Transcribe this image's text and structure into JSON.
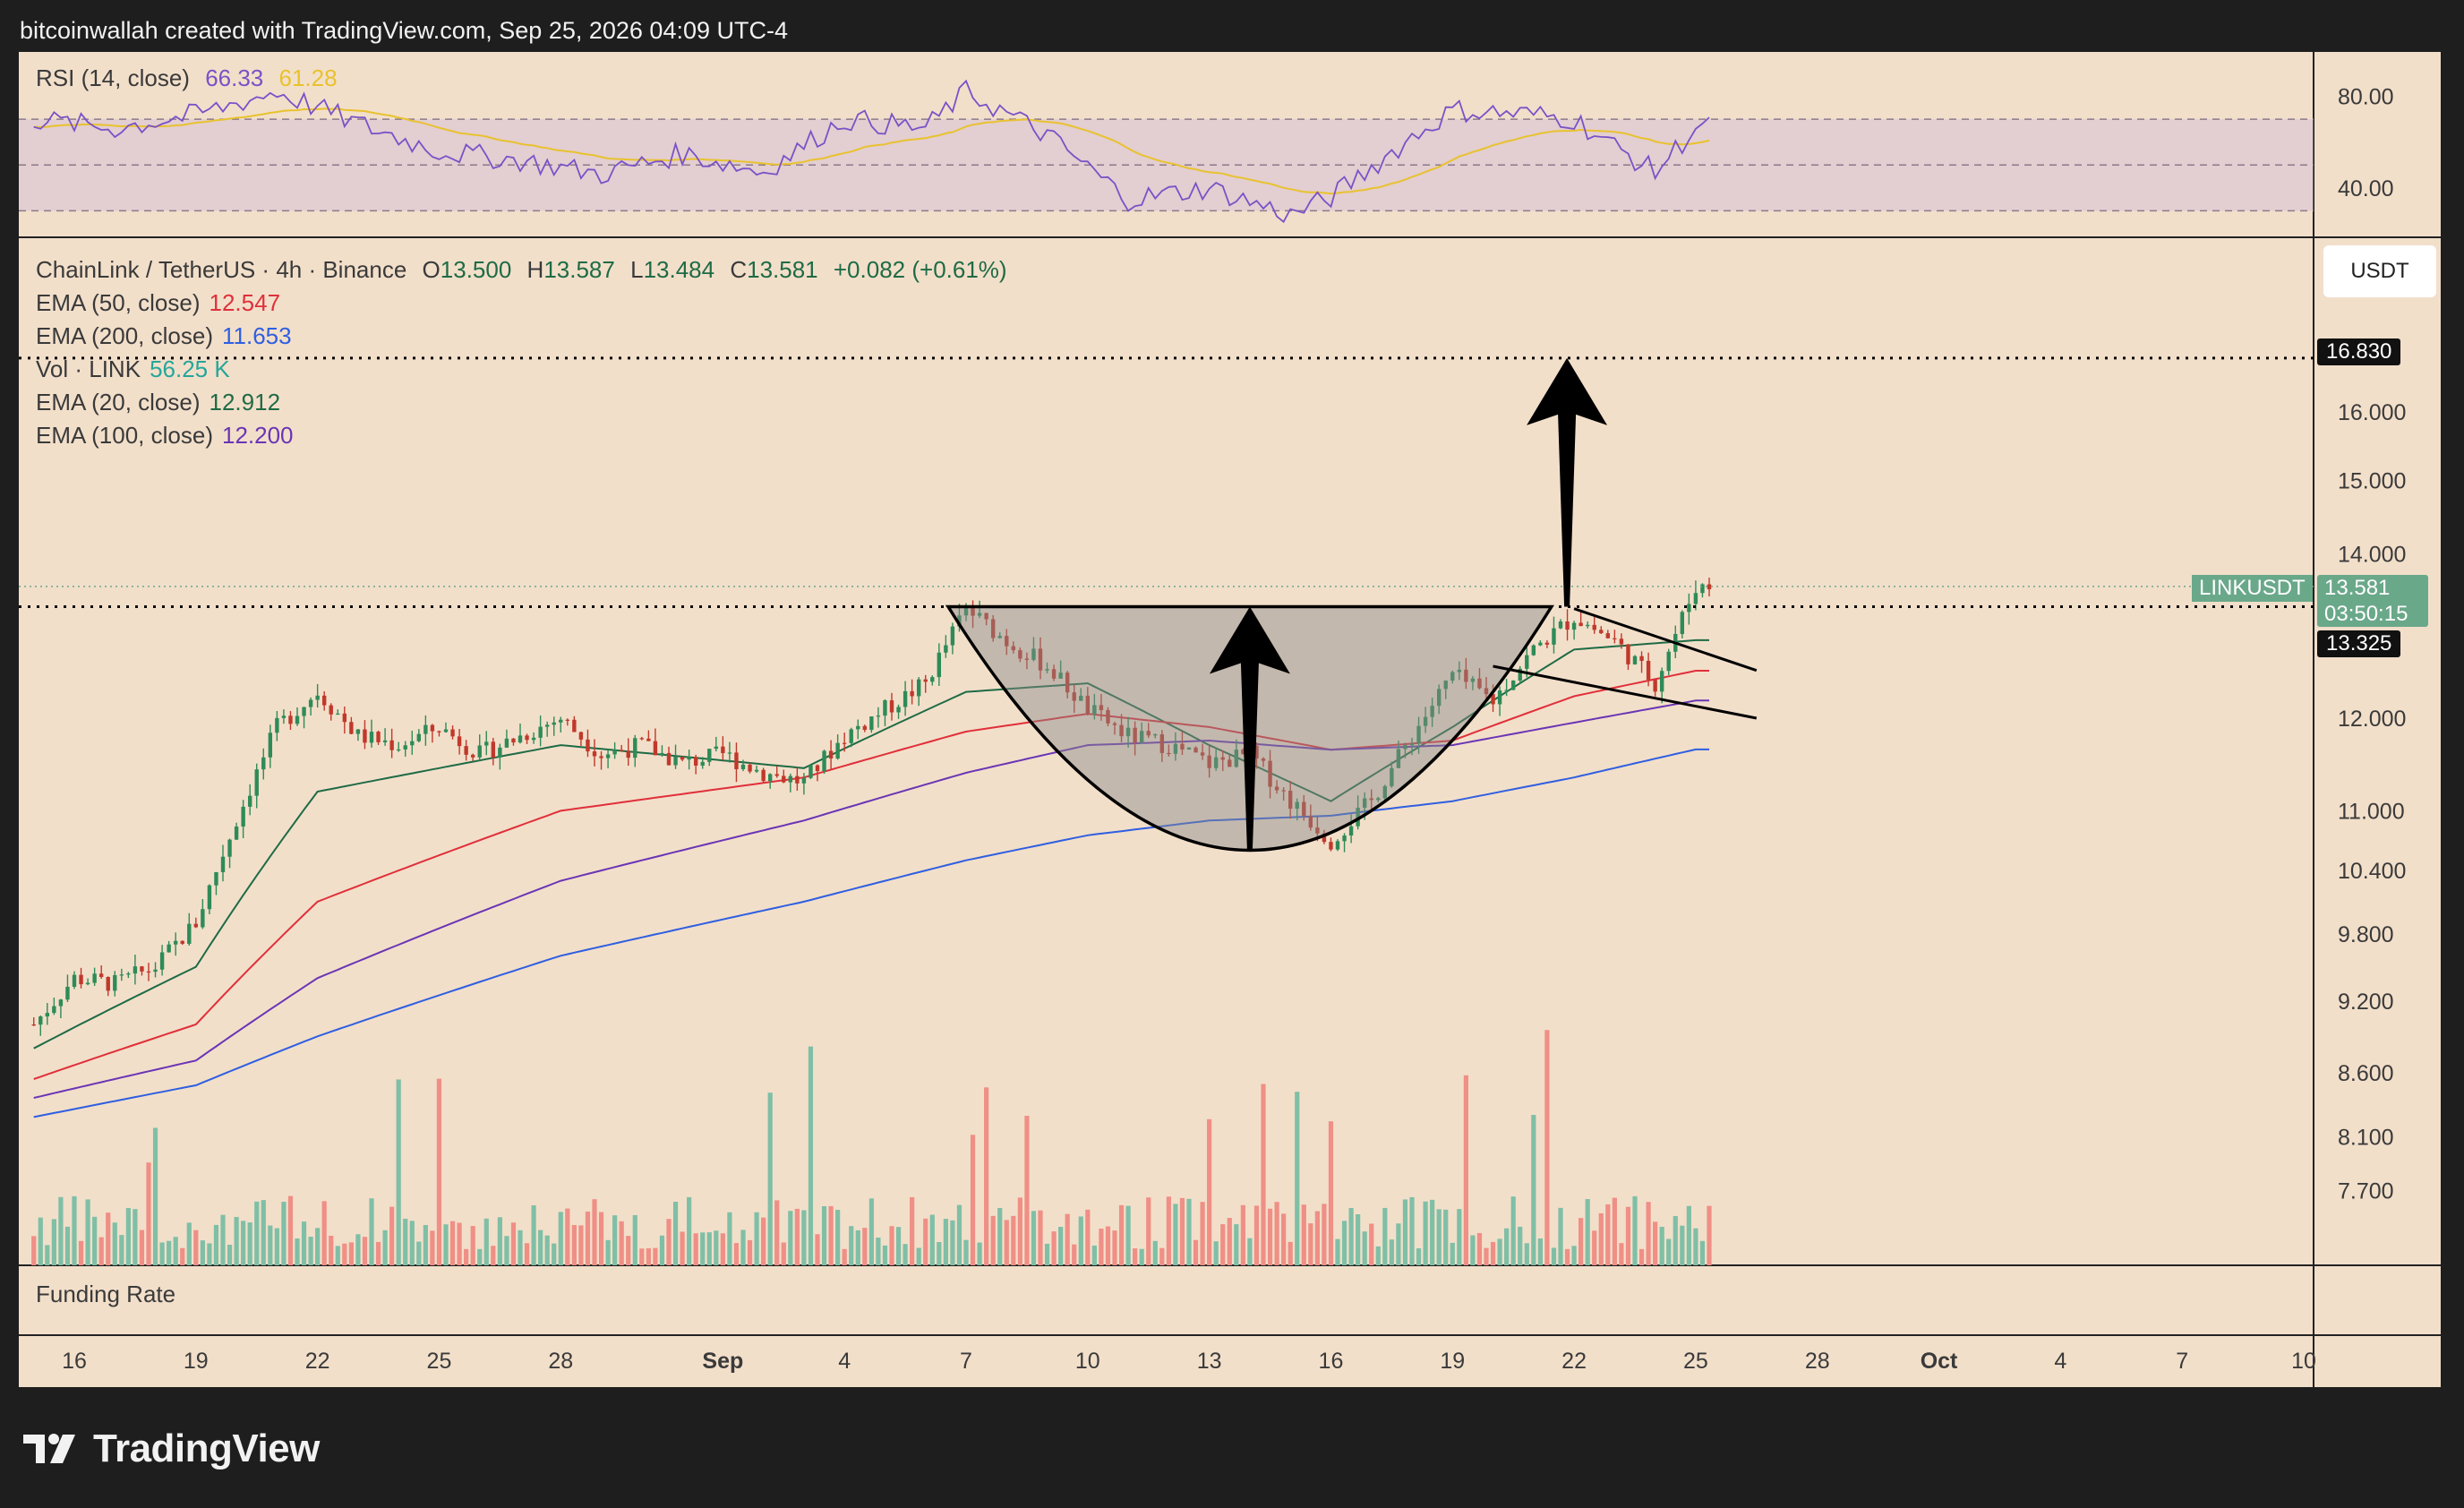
{
  "header": {
    "text": "bitcoinwallah created with TradingView.com, Sep 25, 2026 04:09 UTC-4"
  },
  "brand": {
    "name": "TradingView"
  },
  "colors": {
    "background": "#f2dfca",
    "up": "#2e8b57",
    "down": "#c0392b",
    "ema20": "#1e6b45",
    "ema50": "#e0303a",
    "ema100": "#6a35b5",
    "ema200": "#2f5fe0",
    "rsi_line": "#7a52c7",
    "rsi_ma": "#e8c22e",
    "vol_up": "#7fbfa6",
    "vol_down": "#ef8f86"
  },
  "legend": {
    "symbol": "ChainLink / TetherUS · 4h · Binance",
    "ohlc": [
      {
        "k": "O",
        "v": "13.500"
      },
      {
        "k": "H",
        "v": "13.587"
      },
      {
        "k": "L",
        "v": "13.484"
      },
      {
        "k": "C",
        "v": "13.581"
      }
    ],
    "change": "+0.082 (+0.61%)",
    "indicators": [
      {
        "name": "EMA (50, close)",
        "value": "12.547",
        "color": "#e0303a"
      },
      {
        "name": "EMA (200, close)",
        "value": "11.653",
        "color": "#2f5fe0"
      },
      {
        "name": "Vol · LINK",
        "value": "56.25 K",
        "color": "#26a69a"
      },
      {
        "name": "EMA (20, close)",
        "value": "12.912",
        "color": "#1e6b45"
      },
      {
        "name": "EMA (100, close)",
        "value": "12.200",
        "color": "#6a35b5"
      }
    ]
  },
  "rsi_legend": {
    "name": "RSI (14, close)",
    "value": "66.33",
    "ma_value": "61.28"
  },
  "funding_rate_label": "Funding Rate",
  "currency_badge": "USDT",
  "price_labels": {
    "target": "16.830",
    "current_symbol": "LINKUSDT",
    "current_price": "13.581",
    "countdown": "03:50:15",
    "neckline": "13.325"
  },
  "chart_data": {
    "type": "candlestick",
    "title": "",
    "timeframe": "4h",
    "price_axis": {
      "scale": "log",
      "ticks": [
        "16.000",
        "15.000",
        "14.000",
        "12.000",
        "11.000",
        "10.400",
        "9.800",
        "9.200",
        "8.600",
        "8.100",
        "7.700"
      ],
      "range": [
        7.3,
        18.5
      ]
    },
    "rsi_axis": {
      "ticks": [
        "80.00",
        "40.00"
      ],
      "range": [
        20,
        90
      ],
      "band": [
        30,
        70
      ]
    },
    "time_axis": {
      "ticks": [
        "16",
        "19",
        "22",
        "25",
        "28",
        "Sep",
        "4",
        "7",
        "10",
        "13",
        "16",
        "19",
        "22",
        "25",
        "28",
        "Oct",
        "4",
        "7",
        "10"
      ],
      "dates": [
        "2026-08-16",
        "2026-08-19",
        "2026-08-22",
        "2026-08-25",
        "2026-08-28",
        "2026-09-01",
        "2026-09-04",
        "2026-09-07",
        "2026-09-10",
        "2026-09-13",
        "2026-09-16",
        "2026-09-19",
        "2026-09-22",
        "2026-09-25",
        "2026-09-28",
        "2026-10-01",
        "2026-10-04",
        "2026-10-07",
        "2026-10-10"
      ]
    },
    "price_path": [
      [
        "2026-08-15",
        9.0
      ],
      [
        "2026-08-16",
        9.4
      ],
      [
        "2026-08-17",
        9.35
      ],
      [
        "2026-08-18",
        9.5
      ],
      [
        "2026-08-19",
        9.9
      ],
      [
        "2026-08-20",
        10.9
      ],
      [
        "2026-08-21",
        11.9
      ],
      [
        "2026-08-22",
        12.3
      ],
      [
        "2026-08-23",
        11.8
      ],
      [
        "2026-08-24",
        11.7
      ],
      [
        "2026-08-25",
        11.9
      ],
      [
        "2026-08-26",
        11.6
      ],
      [
        "2026-08-27",
        11.8
      ],
      [
        "2026-08-28",
        12.0
      ],
      [
        "2026-08-29",
        11.6
      ],
      [
        "2026-08-30",
        11.7
      ],
      [
        "2026-08-31",
        11.5
      ],
      [
        "2026-09-01",
        11.6
      ],
      [
        "2026-09-02",
        11.4
      ],
      [
        "2026-09-03",
        11.3
      ],
      [
        "2026-09-04",
        11.8
      ],
      [
        "2026-09-05",
        12.1
      ],
      [
        "2026-09-06",
        12.4
      ],
      [
        "2026-09-07",
        13.3
      ],
      [
        "2026-09-08",
        12.9
      ],
      [
        "2026-09-09",
        12.6
      ],
      [
        "2026-09-10",
        12.1
      ],
      [
        "2026-09-11",
        11.8
      ],
      [
        "2026-09-12",
        11.7
      ],
      [
        "2026-09-13",
        11.5
      ],
      [
        "2026-09-14",
        11.6
      ],
      [
        "2026-09-15",
        11.1
      ],
      [
        "2026-09-16",
        10.7
      ],
      [
        "2026-09-17",
        11.1
      ],
      [
        "2026-09-18",
        11.8
      ],
      [
        "2026-09-19",
        12.5
      ],
      [
        "2026-09-20",
        12.2
      ],
      [
        "2026-09-21",
        12.8
      ],
      [
        "2026-09-22",
        13.2
      ],
      [
        "2026-09-23",
        12.9
      ],
      [
        "2026-09-24",
        12.4
      ],
      [
        "2026-09-25",
        13.58
      ]
    ],
    "ema_series": [
      {
        "name": "EMA (20, close)",
        "color": "#1e6b45",
        "points": [
          [
            "2026-08-15",
            8.8
          ],
          [
            "2026-08-19",
            9.5
          ],
          [
            "2026-08-22",
            11.2
          ],
          [
            "2026-08-28",
            11.7
          ],
          [
            "2026-09-03",
            11.45
          ],
          [
            "2026-09-07",
            12.3
          ],
          [
            "2026-09-10",
            12.4
          ],
          [
            "2026-09-13",
            11.7
          ],
          [
            "2026-09-16",
            11.1
          ],
          [
            "2026-09-19",
            11.9
          ],
          [
            "2026-09-22",
            12.8
          ],
          [
            "2026-09-25",
            12.912
          ]
        ]
      },
      {
        "name": "EMA (50, close)",
        "color": "#e0303a",
        "points": [
          [
            "2026-08-15",
            8.55
          ],
          [
            "2026-08-19",
            9.0
          ],
          [
            "2026-08-22",
            10.1
          ],
          [
            "2026-08-28",
            11.0
          ],
          [
            "2026-09-03",
            11.35
          ],
          [
            "2026-09-07",
            11.85
          ],
          [
            "2026-09-10",
            12.05
          ],
          [
            "2026-09-13",
            11.9
          ],
          [
            "2026-09-16",
            11.65
          ],
          [
            "2026-09-19",
            11.75
          ],
          [
            "2026-09-22",
            12.25
          ],
          [
            "2026-09-25",
            12.547
          ]
        ]
      },
      {
        "name": "EMA (100, close)",
        "color": "#6a35b5",
        "points": [
          [
            "2026-08-15",
            8.4
          ],
          [
            "2026-08-19",
            8.7
          ],
          [
            "2026-08-22",
            9.4
          ],
          [
            "2026-08-28",
            10.3
          ],
          [
            "2026-09-03",
            10.9
          ],
          [
            "2026-09-07",
            11.4
          ],
          [
            "2026-09-10",
            11.7
          ],
          [
            "2026-09-13",
            11.75
          ],
          [
            "2026-09-16",
            11.65
          ],
          [
            "2026-09-19",
            11.7
          ],
          [
            "2026-09-22",
            11.95
          ],
          [
            "2026-09-25",
            12.2
          ]
        ]
      },
      {
        "name": "EMA (200, close)",
        "color": "#2f5fe0",
        "points": [
          [
            "2026-08-15",
            8.25
          ],
          [
            "2026-08-19",
            8.5
          ],
          [
            "2026-08-22",
            8.9
          ],
          [
            "2026-08-28",
            9.6
          ],
          [
            "2026-09-03",
            10.1
          ],
          [
            "2026-09-07",
            10.5
          ],
          [
            "2026-09-10",
            10.75
          ],
          [
            "2026-09-13",
            10.9
          ],
          [
            "2026-09-16",
            10.95
          ],
          [
            "2026-09-19",
            11.1
          ],
          [
            "2026-09-22",
            11.35
          ],
          [
            "2026-09-25",
            11.653
          ]
        ]
      }
    ],
    "rsi_path": [
      [
        "2026-08-15",
        70
      ],
      [
        "2026-08-17",
        66
      ],
      [
        "2026-08-19",
        72
      ],
      [
        "2026-08-21",
        82
      ],
      [
        "2026-08-23",
        68
      ],
      [
        "2026-08-25",
        56
      ],
      [
        "2026-08-27",
        52
      ],
      [
        "2026-08-29",
        46
      ],
      [
        "2026-08-31",
        55
      ],
      [
        "2026-09-02",
        47
      ],
      [
        "2026-09-04",
        70
      ],
      [
        "2026-09-06",
        66
      ],
      [
        "2026-09-07",
        82
      ],
      [
        "2026-09-09",
        63
      ],
      [
        "2026-09-11",
        35
      ],
      [
        "2026-09-13",
        40
      ],
      [
        "2026-09-15",
        28
      ],
      [
        "2026-09-16",
        36
      ],
      [
        "2026-09-18",
        62
      ],
      [
        "2026-09-19",
        74
      ],
      [
        "2026-09-21",
        72
      ],
      [
        "2026-09-22",
        70
      ],
      [
        "2026-09-23",
        58
      ],
      [
        "2026-09-24",
        47
      ],
      [
        "2026-09-25",
        66.33
      ]
    ],
    "annotations": [
      {
        "type": "cup",
        "from": "2026-09-07",
        "to": "2026-09-21",
        "rim": 13.325,
        "bottom": 10.6
      },
      {
        "type": "arrow-up",
        "x": "2026-09-14",
        "from": 10.6,
        "to": 13.325
      },
      {
        "type": "arrow-up",
        "x": "2026-09-21",
        "from": 13.325,
        "to": 16.83
      },
      {
        "type": "hline",
        "label": "neckline",
        "value": 13.325
      },
      {
        "type": "hline",
        "label": "target",
        "value": 16.83
      }
    ]
  }
}
